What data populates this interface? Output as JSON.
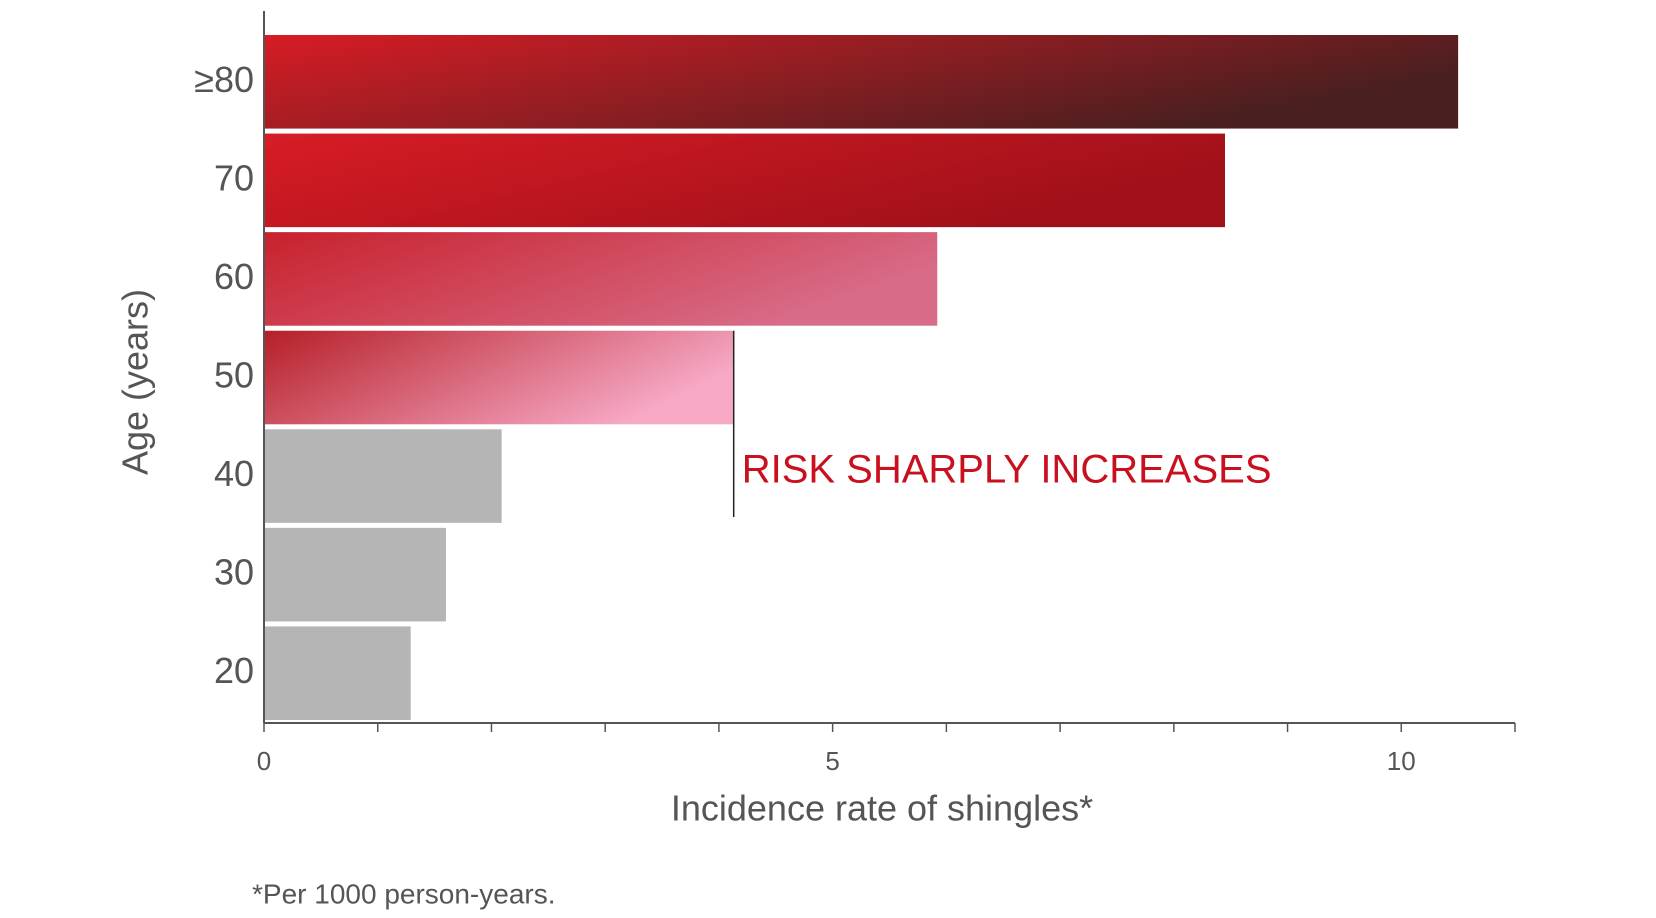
{
  "chart_data": {
    "type": "hbar",
    "categories": [
      "≥80",
      "70",
      "60",
      "50",
      "40",
      "30",
      "20"
    ],
    "values": [
      10.5,
      8.45,
      5.92,
      4.13,
      2.09,
      1.6,
      1.29
    ],
    "colors": [
      [
        "#d81c25",
        "#4a1f20"
      ],
      [
        "#d81c25",
        "#a0101a"
      ],
      [
        "#c8212c",
        "#d86c88"
      ],
      [
        "#b61f27",
        "#f6a8c5"
      ],
      [
        "#b5b5b5",
        "#b5b5b5"
      ],
      [
        "#b5b5b5",
        "#b5b5b5"
      ],
      [
        "#b5b5b5",
        "#b5b5b5"
      ]
    ],
    "xlim": [
      0,
      11
    ],
    "xticks": [
      0,
      5,
      10
    ],
    "x_minor_ticks": [
      0,
      1,
      2,
      3,
      4,
      5,
      6,
      7,
      8,
      9,
      10,
      11
    ],
    "xlabel": "Incidence rate of shingles*",
    "ylabel": "Age (years)",
    "annotation": {
      "text": "RISK SHARPLY INCREASES",
      "color": "#c8101e"
    },
    "footnote": "*Per 1000 person-years."
  }
}
